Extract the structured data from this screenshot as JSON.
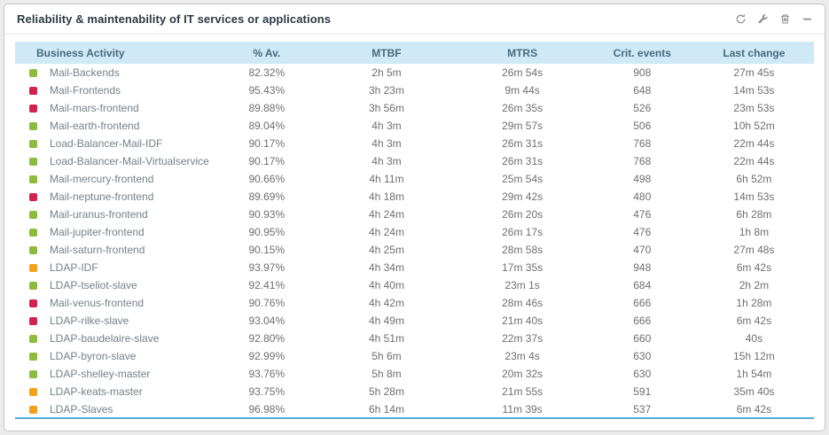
{
  "widget": {
    "title": "Reliability & maintenability of IT services or applications",
    "toolbar_icons": [
      "refresh",
      "configure",
      "delete",
      "collapse"
    ]
  },
  "colors": {
    "ok": "#8cbb3e",
    "warning": "#f5a01a",
    "critical": "#d2234c",
    "header_bg": "#cfe9f7",
    "header_text": "#4a6b7c",
    "bottom_line": "#54ade0"
  },
  "table": {
    "columns": [
      {
        "key": "name",
        "label": "Business Activity"
      },
      {
        "key": "availability",
        "label": "% Av."
      },
      {
        "key": "mtbf",
        "label": "MTBF"
      },
      {
        "key": "mtrs",
        "label": "MTRS"
      },
      {
        "key": "crit_events",
        "label": "Crit. events"
      },
      {
        "key": "last_change",
        "label": "Last change"
      }
    ],
    "rows": [
      {
        "status": "ok",
        "name": "Mail-Backends",
        "availability": "82.32%",
        "mtbf": "2h 5m",
        "mtrs": "26m 54s",
        "crit_events": "908",
        "last_change": "27m 45s"
      },
      {
        "status": "critical",
        "name": "Mail-Frontends",
        "availability": "95.43%",
        "mtbf": "3h 23m",
        "mtrs": "9m 44s",
        "crit_events": "648",
        "last_change": "14m 53s"
      },
      {
        "status": "critical",
        "name": "Mail-mars-frontend",
        "availability": "89.88%",
        "mtbf": "3h 56m",
        "mtrs": "26m 35s",
        "crit_events": "526",
        "last_change": "23m 53s"
      },
      {
        "status": "ok",
        "name": "Mail-earth-frontend",
        "availability": "89.04%",
        "mtbf": "4h 3m",
        "mtrs": "29m 57s",
        "crit_events": "506",
        "last_change": "10h 52m"
      },
      {
        "status": "ok",
        "name": "Load-Balancer-Mail-IDF",
        "availability": "90.17%",
        "mtbf": "4h 3m",
        "mtrs": "26m 31s",
        "crit_events": "768",
        "last_change": "22m 44s"
      },
      {
        "status": "ok",
        "name": "Load-Balancer-Mail-Virtualservice",
        "availability": "90.17%",
        "mtbf": "4h 3m",
        "mtrs": "26m 31s",
        "crit_events": "768",
        "last_change": "22m 44s"
      },
      {
        "status": "ok",
        "name": "Mail-mercury-frontend",
        "availability": "90.66%",
        "mtbf": "4h 11m",
        "mtrs": "25m 54s",
        "crit_events": "498",
        "last_change": "6h 52m"
      },
      {
        "status": "critical",
        "name": "Mail-neptune-frontend",
        "availability": "89.69%",
        "mtbf": "4h 18m",
        "mtrs": "29m 42s",
        "crit_events": "480",
        "last_change": "14m 53s"
      },
      {
        "status": "ok",
        "name": "Mail-uranus-frontend",
        "availability": "90.93%",
        "mtbf": "4h 24m",
        "mtrs": "26m 20s",
        "crit_events": "476",
        "last_change": "6h 28m"
      },
      {
        "status": "ok",
        "name": "Mail-jupiter-frontend",
        "availability": "90.95%",
        "mtbf": "4h 24m",
        "mtrs": "26m 17s",
        "crit_events": "476",
        "last_change": "1h 8m"
      },
      {
        "status": "ok",
        "name": "Mail-saturn-frontend",
        "availability": "90.15%",
        "mtbf": "4h 25m",
        "mtrs": "28m 58s",
        "crit_events": "470",
        "last_change": "27m 48s"
      },
      {
        "status": "warning",
        "name": "LDAP-IDF",
        "availability": "93.97%",
        "mtbf": "4h 34m",
        "mtrs": "17m 35s",
        "crit_events": "948",
        "last_change": "6m 42s"
      },
      {
        "status": "ok",
        "name": "LDAP-tseliot-slave",
        "availability": "92.41%",
        "mtbf": "4h 40m",
        "mtrs": "23m 1s",
        "crit_events": "684",
        "last_change": "2h 2m"
      },
      {
        "status": "critical",
        "name": "Mail-venus-frontend",
        "availability": "90.76%",
        "mtbf": "4h 42m",
        "mtrs": "28m 46s",
        "crit_events": "666",
        "last_change": "1h 28m"
      },
      {
        "status": "critical",
        "name": "LDAP-rilke-slave",
        "availability": "93.04%",
        "mtbf": "4h 49m",
        "mtrs": "21m 40s",
        "crit_events": "666",
        "last_change": "6m 42s"
      },
      {
        "status": "ok",
        "name": "LDAP-baudelaire-slave",
        "availability": "92.80%",
        "mtbf": "4h 51m",
        "mtrs": "22m 37s",
        "crit_events": "660",
        "last_change": "40s"
      },
      {
        "status": "ok",
        "name": "LDAP-byron-slave",
        "availability": "92.99%",
        "mtbf": "5h 6m",
        "mtrs": "23m 4s",
        "crit_events": "630",
        "last_change": "15h 12m"
      },
      {
        "status": "ok",
        "name": "LDAP-shelley-master",
        "availability": "93.76%",
        "mtbf": "5h 8m",
        "mtrs": "20m 32s",
        "crit_events": "630",
        "last_change": "1h 54m"
      },
      {
        "status": "warning",
        "name": "LDAP-keats-master",
        "availability": "93.75%",
        "mtbf": "5h 28m",
        "mtrs": "21m 55s",
        "crit_events": "591",
        "last_change": "35m 40s"
      },
      {
        "status": "warning",
        "name": "LDAP-Slaves",
        "availability": "96.98%",
        "mtbf": "6h 14m",
        "mtrs": "11m 39s",
        "crit_events": "537",
        "last_change": "6m 42s"
      }
    ]
  }
}
